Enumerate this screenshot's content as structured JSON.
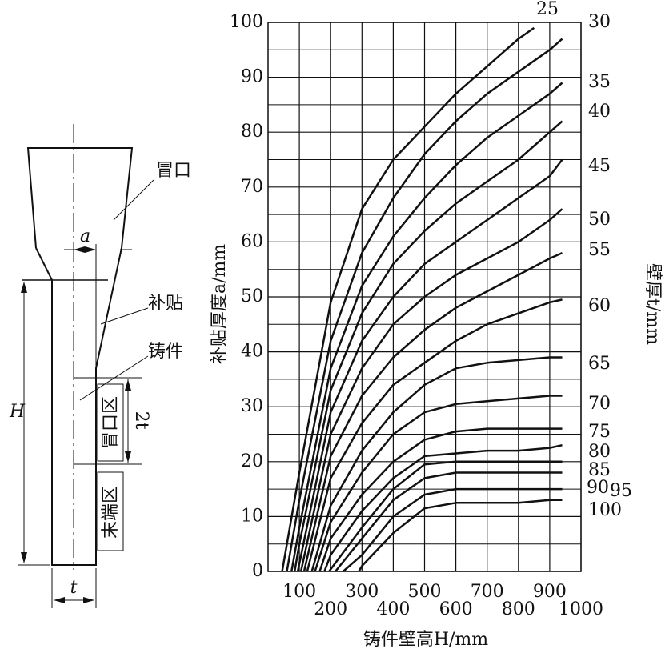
{
  "diagram": {
    "riser": "冒口",
    "a": "a",
    "padding": "补贴",
    "casting": "铸件",
    "height": "H",
    "two_t": "2t",
    "riser_zone": "冒口区",
    "end_zone": "末端区",
    "thickness": "t"
  },
  "chart_data": {
    "type": "line",
    "xlabel": "铸件壁高H/mm",
    "ylabel": "补贴厚度a/mm",
    "y2label": "壁厚t/mm",
    "xlim": [
      0,
      1000
    ],
    "xticks": [
      100,
      200,
      300,
      400,
      500,
      600,
      700,
      800,
      900,
      1000
    ],
    "ylim": [
      0,
      100
    ],
    "yticks": [
      0,
      10,
      20,
      30,
      40,
      50,
      60,
      70,
      80,
      90,
      100
    ],
    "yminorticks": [
      5,
      15,
      25,
      35,
      45,
      55,
      65,
      75,
      85,
      95
    ],
    "grid": true,
    "color": "#111111",
    "series": [
      {
        "name": "25",
        "x": [
          45,
          100,
          200,
          300,
          400,
          500,
          600,
          700,
          800,
          850
        ],
        "values": [
          0,
          18,
          49,
          66,
          75,
          81,
          87,
          92,
          97,
          99
        ]
      },
      {
        "name": "30",
        "x": [
          60,
          100,
          200,
          300,
          400,
          500,
          600,
          700,
          800,
          900,
          940
        ],
        "values": [
          0,
          13,
          42,
          58,
          68,
          76,
          82,
          87,
          91,
          95,
          97
        ]
      },
      {
        "name": "35",
        "x": [
          75,
          100,
          200,
          300,
          400,
          500,
          600,
          700,
          800,
          900,
          940
        ],
        "values": [
          0,
          8,
          37,
          52,
          61,
          68,
          74,
          79,
          83,
          87,
          89
        ]
      },
      {
        "name": "40",
        "x": [
          85,
          100,
          200,
          300,
          400,
          500,
          600,
          700,
          800,
          900,
          940
        ],
        "values": [
          0,
          5,
          33,
          47,
          56,
          62,
          67,
          71,
          75,
          80,
          82
        ]
      },
      {
        "name": "45",
        "x": [
          95,
          200,
          300,
          400,
          500,
          600,
          700,
          800,
          900,
          940
        ],
        "values": [
          0,
          29,
          42,
          50,
          56,
          60,
          64,
          68,
          72,
          75
        ]
      },
      {
        "name": "50",
        "x": [
          105,
          200,
          300,
          400,
          500,
          600,
          700,
          800,
          900,
          940
        ],
        "values": [
          0,
          25,
          37,
          45,
          50,
          54,
          57,
          60,
          64,
          66
        ]
      },
      {
        "name": "55",
        "x": [
          115,
          200,
          300,
          400,
          500,
          600,
          700,
          800,
          900,
          940
        ],
        "values": [
          0,
          21,
          32,
          39,
          44,
          48,
          51,
          54,
          57,
          58
        ]
      },
      {
        "name": "60",
        "x": [
          125,
          200,
          300,
          400,
          500,
          600,
          700,
          800,
          900,
          940
        ],
        "values": [
          0,
          17,
          27,
          34,
          38,
          42,
          45,
          47,
          49,
          49.5
        ]
      },
      {
        "name": "65",
        "x": [
          140,
          200,
          300,
          400,
          500,
          600,
          700,
          800,
          900,
          940
        ],
        "values": [
          0,
          12,
          22,
          29,
          34,
          37,
          38,
          38.5,
          39,
          39
        ]
      },
      {
        "name": "70",
        "x": [
          150,
          200,
          300,
          400,
          500,
          600,
          700,
          800,
          900,
          940
        ],
        "values": [
          0,
          9,
          18,
          25,
          29,
          30.5,
          31,
          31.5,
          32,
          32
        ]
      },
      {
        "name": "75",
        "x": [
          165,
          200,
          300,
          400,
          500,
          600,
          700,
          800,
          900,
          940
        ],
        "values": [
          0,
          6,
          14,
          20,
          24,
          25.5,
          26,
          26,
          26,
          26
        ]
      },
      {
        "name": "80",
        "x": [
          180,
          200,
          300,
          400,
          500,
          600,
          700,
          800,
          900,
          940
        ],
        "values": [
          0,
          3,
          11,
          17,
          21,
          21.5,
          22,
          22,
          22.5,
          23
        ]
      },
      {
        "name": "85",
        "x": [
          195,
          300,
          400,
          500,
          600,
          700,
          800,
          900,
          940
        ],
        "values": [
          0,
          8,
          15,
          19.5,
          20,
          20,
          20,
          20,
          20
        ]
      },
      {
        "name": "90",
        "x": [
          215,
          300,
          400,
          500,
          600,
          700,
          800,
          900,
          940
        ],
        "values": [
          0,
          6,
          13,
          17,
          18,
          18,
          18,
          18,
          18
        ]
      },
      {
        "name": "95",
        "x": [
          240,
          300,
          400,
          500,
          600,
          700,
          800,
          900,
          940
        ],
        "values": [
          0,
          3,
          10,
          14,
          15,
          15,
          15,
          15,
          15
        ]
      },
      {
        "name": "100",
        "x": [
          290,
          300,
          400,
          500,
          600,
          700,
          800,
          900,
          940
        ],
        "values": [
          0,
          1,
          7,
          11.5,
          12.5,
          12.5,
          12.5,
          13,
          13
        ]
      }
    ]
  }
}
